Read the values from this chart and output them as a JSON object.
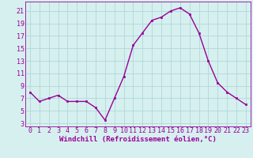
{
  "x": [
    0,
    1,
    2,
    3,
    4,
    5,
    6,
    7,
    8,
    9,
    10,
    11,
    12,
    13,
    14,
    15,
    16,
    17,
    18,
    19,
    20,
    21,
    22,
    23
  ],
  "y": [
    8.0,
    6.5,
    7.0,
    7.5,
    6.5,
    6.5,
    6.5,
    5.5,
    3.5,
    7.0,
    10.5,
    15.5,
    17.5,
    19.5,
    20.0,
    21.0,
    21.5,
    20.5,
    17.5,
    13.0,
    9.5,
    8.0,
    7.0,
    6.0
  ],
  "xlabel": "Windchill (Refroidissement éolien,°C)",
  "xlim": [
    -0.5,
    23.5
  ],
  "ylim": [
    2.5,
    22.5
  ],
  "yticks": [
    3,
    5,
    7,
    9,
    11,
    13,
    15,
    17,
    19,
    21
  ],
  "xticks": [
    0,
    1,
    2,
    3,
    4,
    5,
    6,
    7,
    8,
    9,
    10,
    11,
    12,
    13,
    14,
    15,
    16,
    17,
    18,
    19,
    20,
    21,
    22,
    23
  ],
  "line_color": "#990099",
  "marker": "s",
  "marker_size": 1.8,
  "bg_color": "#d6f0ef",
  "grid_color": "#b0d8d8",
  "xlabel_fontsize": 6.5,
  "tick_fontsize": 6.0,
  "line_width": 1.0
}
